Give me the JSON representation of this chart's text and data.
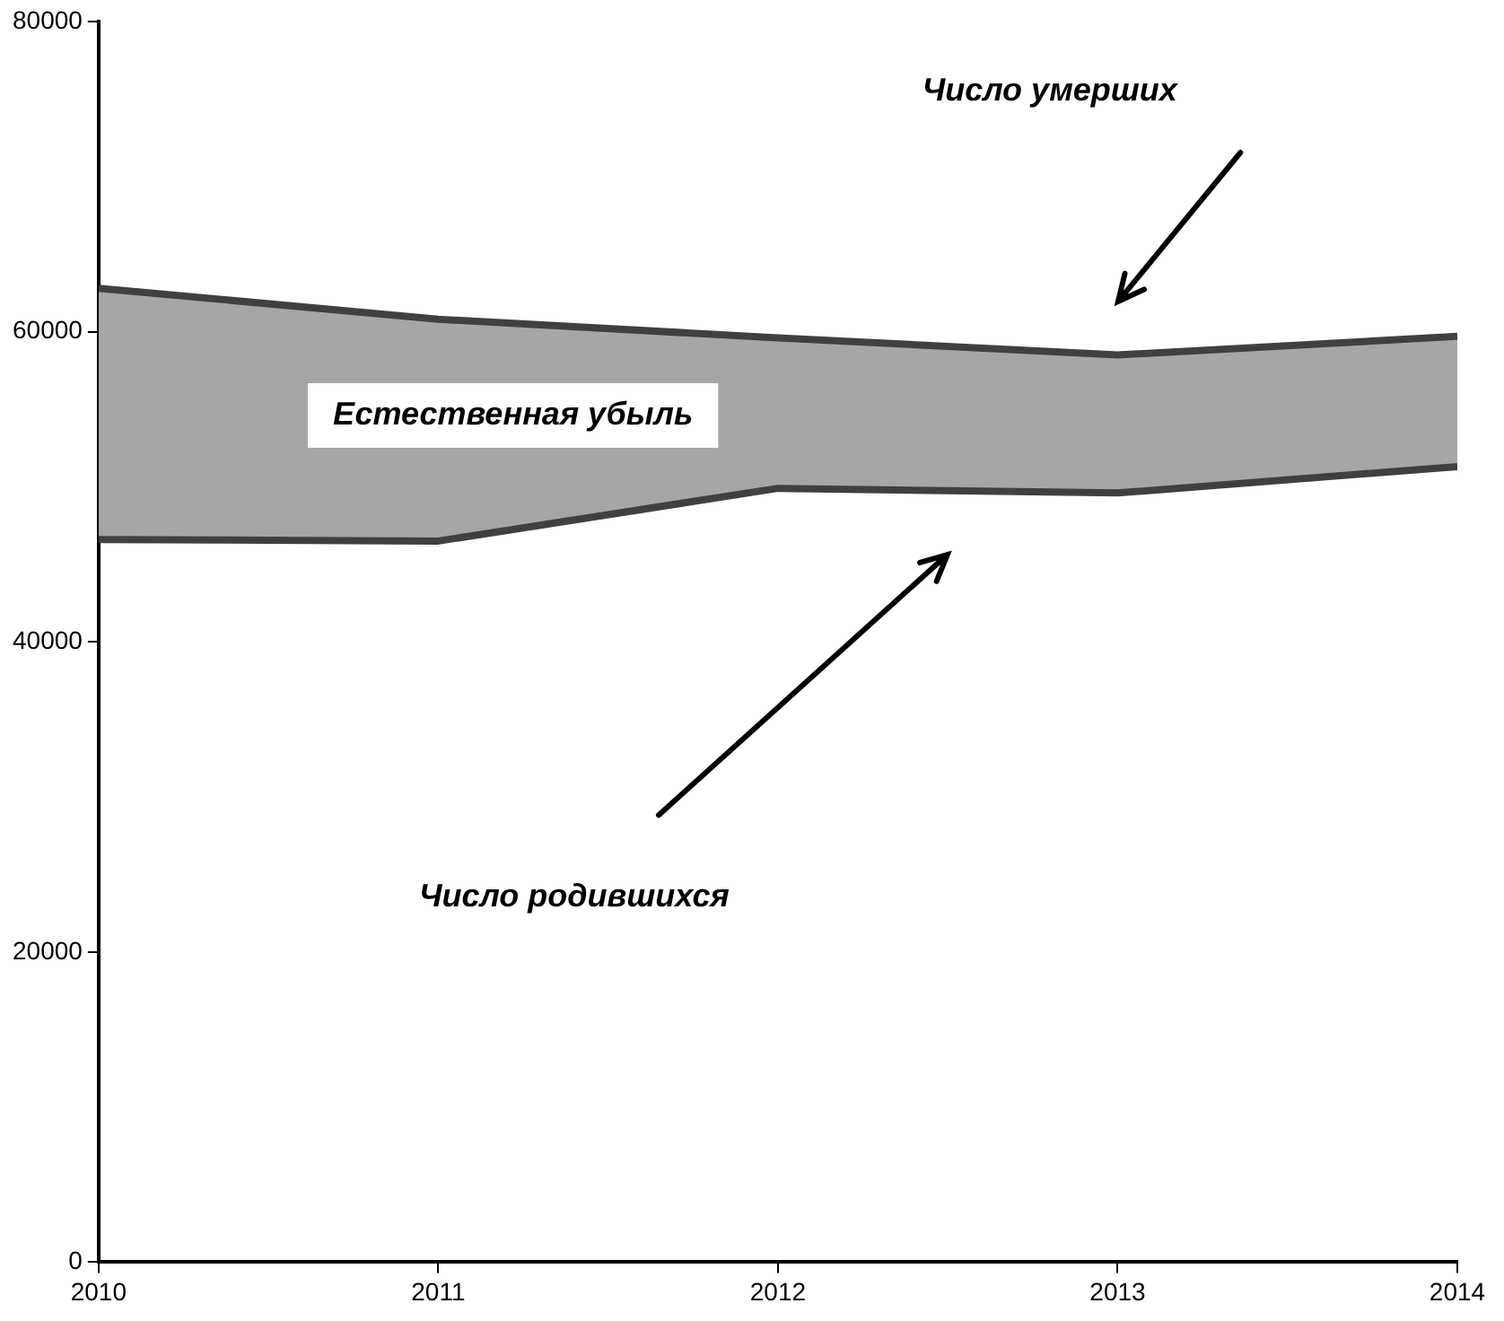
{
  "chart_data": {
    "type": "line",
    "x": [
      2010,
      2011,
      2012,
      2013,
      2014
    ],
    "series": [
      {
        "color": "#404040",
        "values": [
          46600,
          46500,
          49900,
          49600,
          51300
        ]
      },
      {
        "type": "area",
        "color": "#a6a6a6",
        "values": [
          62800,
          60800,
          59600,
          58500,
          59700
        ]
      }
    ],
    "xlim": [
      2010,
      2014
    ],
    "xticks": [
      2010,
      2011,
      2012,
      2013,
      2014
    ],
    "ylim": [
      0,
      80000
    ],
    "yticks": [
      0,
      20000,
      40000,
      60000,
      80000
    ],
    "grid": false,
    "legend": false,
    "marker": "none",
    "line_style": "solid",
    "annotations": [
      "Естественная убыль",
      "Число умерших",
      "Число родившихся"
    ]
  }
}
